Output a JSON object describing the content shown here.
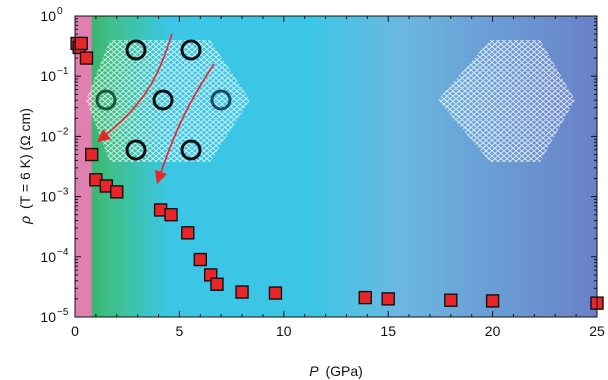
{
  "chart_data": {
    "type": "scatter",
    "xlabel_var": "P",
    "xlabel_unit": "(GPa)",
    "ylabel_var": "ρ",
    "ylabel_rest": "(T = 6 K) (Ω cm)",
    "xlim": [
      0,
      25
    ],
    "ylim": [
      1e-05,
      1
    ],
    "yscale": "log",
    "x_ticks": [
      0,
      5,
      10,
      15,
      20,
      25
    ],
    "x_tick_labels": [
      "0",
      "5",
      "10",
      "15",
      "20",
      "25"
    ],
    "y_ticks": [
      1e-05,
      0.0001,
      0.001,
      0.01,
      0.1,
      1
    ],
    "y_tick_bases": [
      "10",
      "10",
      "10",
      "10",
      "10",
      "10"
    ],
    "y_tick_exps": [
      "−5",
      "−4",
      "−3",
      "−2",
      "−1",
      "0"
    ],
    "marker_color": "#e8262a",
    "background": {
      "pink_region_end": 0.8,
      "colors": [
        "#e080b0",
        "#3aae5a",
        "#3cc6e6",
        "#6a8acb"
      ]
    },
    "series": [
      {
        "x": [
          0.1,
          0.2,
          0.3,
          0.55,
          0.8,
          1.0,
          1.5,
          2.0,
          4.1,
          4.6,
          5.4,
          6.0,
          6.5,
          6.8,
          8.0,
          9.6,
          13.9,
          15.0,
          18.0,
          20.0,
          25.0
        ],
        "y": [
          0.35,
          0.3,
          0.35,
          0.2,
          0.005,
          0.0019,
          0.0015,
          0.0012,
          0.0006,
          0.0005,
          0.00025,
          9e-05,
          5e-05,
          3.5e-05,
          2.6e-05,
          2.5e-05,
          2.1e-05,
          2e-05,
          1.9e-05,
          1.85e-05,
          1.7e-05
        ]
      }
    ]
  }
}
